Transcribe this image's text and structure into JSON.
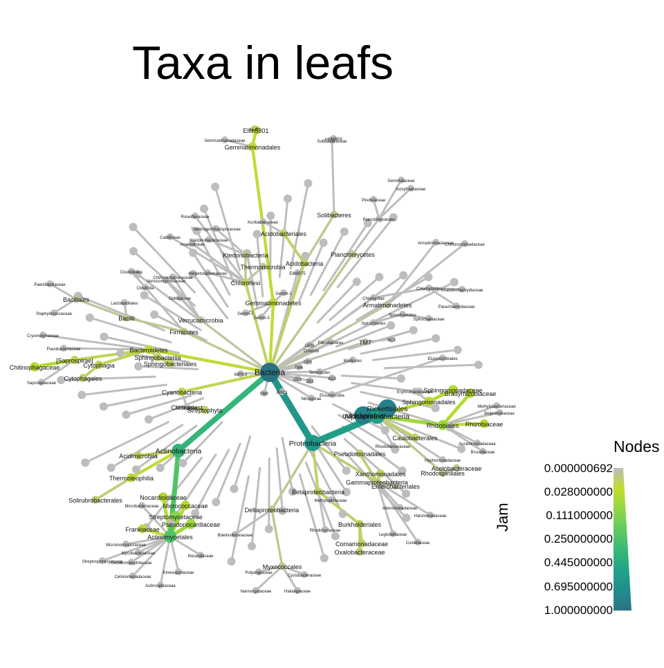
{
  "title": "Taxa in leafs",
  "legend": {
    "title": "Nodes",
    "axis_label": "Jam",
    "ticks": [
      "0.000000692",
      "0.028000000",
      "0.111000000",
      "0.250000000",
      "0.445000000",
      "0.695000000",
      "1.000000000"
    ],
    "gradient_colors": [
      "#bdbdbd",
      "#c2dd2a",
      "#7cd250",
      "#3dbc74",
      "#20a387",
      "#228b8d",
      "#2c7283"
    ]
  },
  "tree": {
    "root": "Bacteria",
    "nodes": [
      {
        "label": "Bacteria",
        "major": true,
        "level": 1.0
      },
      {
        "label": "Proteobacteria",
        "major": true,
        "level": 0.75
      },
      {
        "label": "Alphaproteobacteria",
        "major": true,
        "level": 0.7
      },
      {
        "label": "Rickettsiales",
        "major": true,
        "level": 0.9
      },
      {
        "label": "mitochondria",
        "major": true,
        "level": 0.9
      },
      {
        "label": "Actinobacteria",
        "major": true,
        "level": 0.55
      },
      {
        "label": "Actinomycetales",
        "major": true,
        "level": 0.45
      },
      {
        "label": "Gemmatimonadetes",
        "major": true,
        "level": 0.15
      },
      {
        "label": "Acidobacteria",
        "major": true,
        "level": 0.1
      },
      {
        "label": "Chloroflexi",
        "major": true,
        "level": 0.1
      },
      {
        "label": "Bacteroidetes",
        "major": true,
        "level": 0.15
      },
      {
        "label": "Cyanobacteria",
        "major": true,
        "level": 0.12
      },
      {
        "label": "Betaproteobacteria",
        "major": true,
        "level": 0.1
      },
      {
        "label": "Gammaproteobacteria",
        "major": true,
        "level": 0.08
      },
      {
        "label": "Deltaproteobacteria",
        "major": true,
        "level": 0.05
      },
      {
        "label": "Sphingobacteriia",
        "major": true,
        "level": 0.1
      },
      {
        "label": "Verrucomicrobia",
        "major": true,
        "level": 0.03
      },
      {
        "label": "Firmicutes",
        "major": true,
        "level": 0.05
      },
      {
        "label": "Planctomycetes",
        "major": true,
        "level": 0.05
      },
      {
        "label": "Armatimonadetes",
        "major": true,
        "level": 0.03
      },
      {
        "label": "TM7",
        "major": true,
        "level": 0.02
      },
      {
        "label": "Chloroplast",
        "major": true,
        "level": 0.1
      },
      {
        "label": "Streptophyta",
        "major": true,
        "level": 0.1
      },
      {
        "label": "Thermoleophilia",
        "major": true,
        "level": 0.15
      },
      {
        "label": "Acidimicrobiia",
        "major": true,
        "level": 0.1
      },
      {
        "label": "Solibacteres",
        "major": true,
        "level": 0.05
      },
      {
        "label": "Gemmatimonadales",
        "major": true,
        "level": 0.15
      },
      {
        "label": "Acidobacteriales",
        "major": true,
        "level": 0.1
      },
      {
        "label": "Bacilli",
        "major": true,
        "level": 0.05
      },
      {
        "label": "Bacillales",
        "major": true,
        "level": 0.04
      },
      {
        "label": "Cytophagia",
        "major": true,
        "level": 0.12
      },
      {
        "label": "Cytophagales",
        "major": true,
        "level": 0.1
      },
      {
        "label": "[Saprospirae]",
        "major": true,
        "level": 0.12
      },
      {
        "label": "Sphingomonadales",
        "major": true,
        "level": 0.2
      },
      {
        "label": "Rhizobiales",
        "major": true,
        "level": 0.25
      },
      {
        "label": "Burkholderiales",
        "major": true,
        "level": 0.1
      },
      {
        "label": "Xanthomonadales",
        "major": true,
        "level": 0.1
      },
      {
        "label": "Myxococcales",
        "major": true,
        "level": 0.05
      },
      {
        "label": "Caulobacterales",
        "major": true,
        "level": 0.1
      },
      {
        "label": "Rhodospirillales",
        "major": true,
        "level": 0.05
      },
      {
        "label": "Pseudomonadales",
        "major": true,
        "level": 0.08
      },
      {
        "label": "Enterobacteriales",
        "major": true,
        "level": 0.03
      },
      {
        "label": "Nocardioidaceae",
        "major": true,
        "level": 0.2
      },
      {
        "label": "Streptomycetaceae",
        "major": true,
        "level": 0.3
      },
      {
        "label": "Micrococcaceae",
        "major": true,
        "level": 0.2
      },
      {
        "label": "Pseudonocardiaceae",
        "major": true,
        "level": 0.25
      },
      {
        "label": "Chitinophagaceae",
        "major": true,
        "level": 0.2
      },
      {
        "label": "Sphingobacteriales",
        "major": true,
        "level": 0.1
      },
      {
        "label": "Comamonadaceae",
        "major": true,
        "level": 0.1
      },
      {
        "label": "Oxalobacteraceae",
        "major": true,
        "level": 0.08
      },
      {
        "label": "Acetobacteraceae",
        "major": true,
        "level": 0.04
      },
      {
        "label": "Sphingomonadaceae",
        "major": true,
        "level": 0.2
      },
      {
        "label": "Bradyrhizobiaceae",
        "major": true,
        "level": 0.2
      },
      {
        "label": "Rhizobiaceae",
        "major": true,
        "level": 0.15
      },
      {
        "label": "Frankiaceae",
        "major": true,
        "level": 0.15
      },
      {
        "label": "Ellin5301",
        "major": true,
        "level": 0.15
      },
      {
        "label": "Solirubrobacterales",
        "major": true,
        "level": 0.08
      },
      {
        "label": "Ktedonobacteria",
        "major": true,
        "level": 0.05
      },
      {
        "label": "Thermomicrobia",
        "major": true,
        "level": 0.03
      },
      {
        "label": "Chlorobi",
        "major": false,
        "level": 0.0
      },
      {
        "label": "Fibrobacteres",
        "major": false,
        "level": 0.0
      },
      {
        "label": "Nitrospirae",
        "major": false,
        "level": 0.0
      },
      {
        "label": "Elusimicrobia",
        "major": false,
        "level": 0.0
      },
      {
        "label": "Tenericutes",
        "major": false,
        "level": 0.0
      },
      {
        "label": "Mollicutes",
        "major": false,
        "level": 0.0
      },
      {
        "label": "Spirochaetes",
        "major": false,
        "level": 0.0
      },
      {
        "label": "Chlamydiae",
        "major": false,
        "level": 0.0
      },
      {
        "label": "Gemm-1",
        "major": false,
        "level": 0.0
      },
      {
        "label": "Gemm-3",
        "major": false,
        "level": 0.0
      },
      {
        "label": "Gemm-5",
        "major": false,
        "level": 0.0
      },
      {
        "label": "WPS-2",
        "major": false,
        "level": 0.0
      },
      {
        "label": "FBP",
        "major": false,
        "level": 0.0
      },
      {
        "label": "BRC1",
        "major": false,
        "level": 0.0
      },
      {
        "label": "OD1",
        "major": false,
        "level": 0.0
      },
      {
        "label": "ZB2",
        "major": false,
        "level": 0.0
      },
      {
        "label": "AD3",
        "major": false,
        "level": 0.0
      },
      {
        "label": "OP11",
        "major": false,
        "level": 0.0
      },
      {
        "label": "TM6",
        "major": false,
        "level": 0.0
      },
      {
        "label": "OP3",
        "major": false,
        "level": 0.0
      },
      {
        "label": "SC3",
        "major": false,
        "level": 0.0
      },
      {
        "label": "Elin6075",
        "major": false,
        "level": 0.0
      },
      {
        "label": "Saprospiraceae",
        "major": false,
        "level": 0.0
      },
      {
        "label": "Flavobacteriaceae",
        "major": false,
        "level": 0.0
      },
      {
        "label": "Cryomorphaceae",
        "major": false,
        "level": 0.0
      },
      {
        "label": "Paenibacillaceae",
        "major": false,
        "level": 0.0
      },
      {
        "label": "Staphylococcaceae",
        "major": false,
        "level": 0.0
      },
      {
        "label": "Lactobacillales",
        "major": false,
        "level": 0.0
      },
      {
        "label": "Clostridia",
        "major": false,
        "level": 0.0
      },
      {
        "label": "Clostridiales",
        "major": false,
        "level": 0.0
      },
      {
        "label": "Anaerolineae",
        "major": false,
        "level": 0.0
      },
      {
        "label": "Caldilineae",
        "major": false,
        "level": 0.0
      },
      {
        "label": "Microbacteriaceae",
        "major": false,
        "level": 0.0
      },
      {
        "label": "Mycobacteriaceae",
        "major": false,
        "level": 0.0
      },
      {
        "label": "Geodermatophilaceae",
        "major": false,
        "level": 0.0
      },
      {
        "label": "Nocardiaceae",
        "major": false,
        "level": 0.0
      },
      {
        "label": "Cellulomonadaceae",
        "major": false,
        "level": 0.0
      },
      {
        "label": "Actinospicaceae",
        "major": false,
        "level": 0.0
      },
      {
        "label": "Kineosporiaceae",
        "major": false,
        "level": 0.0
      },
      {
        "label": "Micromonosporaceae",
        "major": false,
        "level": 0.0
      },
      {
        "label": "Streptosporangiaceae",
        "major": false,
        "level": 0.0
      },
      {
        "label": "Bdellovibrionaceae",
        "major": false,
        "level": 0.0
      },
      {
        "label": "Polyangiaceae",
        "major": false,
        "level": 0.0
      },
      {
        "label": "Haliangiaceae",
        "major": false,
        "level": 0.0
      },
      {
        "label": "Nannocystaceae",
        "major": false,
        "level": 0.0
      },
      {
        "label": "Cystobacteraceae",
        "major": false,
        "level": 0.0
      },
      {
        "label": "Legionellaceae",
        "major": false,
        "level": 0.0
      },
      {
        "label": "Coxiellaceae",
        "major": false,
        "level": 0.0
      },
      {
        "label": "Halomonadaceae",
        "major": false,
        "level": 0.0
      },
      {
        "label": "Alteromonadaceae",
        "major": false,
        "level": 0.0
      },
      {
        "label": "Methylophilaceae",
        "major": false,
        "level": 0.0
      },
      {
        "label": "Rhodocyclaceae",
        "major": false,
        "level": 0.0
      },
      {
        "label": "Hyphomonadaceae",
        "major": false,
        "level": 0.0
      },
      {
        "label": "Beijerinckiaceae",
        "major": false,
        "level": 0.0
      },
      {
        "label": "Methylobacteriaceae",
        "major": false,
        "level": 0.0
      },
      {
        "label": "Brucellaceae",
        "major": false,
        "level": 0.0
      },
      {
        "label": "Aurantimonadaceae",
        "major": false,
        "level": 0.0
      },
      {
        "label": "Rhodobacteraceae",
        "major": false,
        "level": 0.0
      },
      {
        "label": "Erythrobacteraceae",
        "major": false,
        "level": 0.0
      },
      {
        "label": "Elusimicrobiales",
        "major": false,
        "level": 0.0
      },
      {
        "label": "Chthonomonadaceae",
        "major": false,
        "level": 0.0
      },
      {
        "label": "Armatimonadaceae",
        "major": false,
        "level": 0.0
      },
      {
        "label": "Spirochaetaceae",
        "major": false,
        "level": 0.0
      },
      {
        "label": "Parachlamydiaceae",
        "major": false,
        "level": 0.0
      },
      {
        "label": "Rhabdochlamydiaceae",
        "major": false,
        "level": 0.0
      },
      {
        "label": "Gemmataceae",
        "major": false,
        "level": 0.0
      },
      {
        "label": "Isosphaeraceae",
        "major": false,
        "level": 0.0
      },
      {
        "label": "Pirellulaceae",
        "major": false,
        "level": 0.0
      },
      {
        "label": "Koribacteraceae",
        "major": false,
        "level": 0.0
      },
      {
        "label": "Solibacteraceae",
        "major": false,
        "level": 0.0
      },
      {
        "label": "Gemmatimonadaceae",
        "major": false,
        "level": 0.0
      },
      {
        "label": "A1-B1",
        "major": false,
        "level": 0.0
      },
      {
        "label": "AKIW659",
        "major": false,
        "level": 0.0
      },
      {
        "label": "Verrucomicrobiaceae",
        "major": false,
        "level": 0.0
      },
      {
        "label": "Chthoniobacteraceae",
        "major": false,
        "level": 0.0
      },
      {
        "label": "Opitutaceae",
        "major": false,
        "level": 0.0
      },
      {
        "label": "Herpetosiphonaceae",
        "major": false,
        "level": 0.0
      },
      {
        "label": "Roseiflexaceae",
        "major": false,
        "level": 0.0
      },
      {
        "label": "Ktedonobacteraceae",
        "major": false,
        "level": 0.0
      },
      {
        "label": "Thermogemmatisporaceae",
        "major": false,
        "level": 0.0
      },
      {
        "label": "Chlamydiales",
        "major": false,
        "level": 0.0
      },
      {
        "label": "Planctomycetales",
        "major": false,
        "level": 0.0
      },
      {
        "label": "Spirochaetales",
        "major": false,
        "level": 0.0
      },
      {
        "label": "Chloroplast",
        "major": false,
        "level": 0.0
      }
    ]
  }
}
